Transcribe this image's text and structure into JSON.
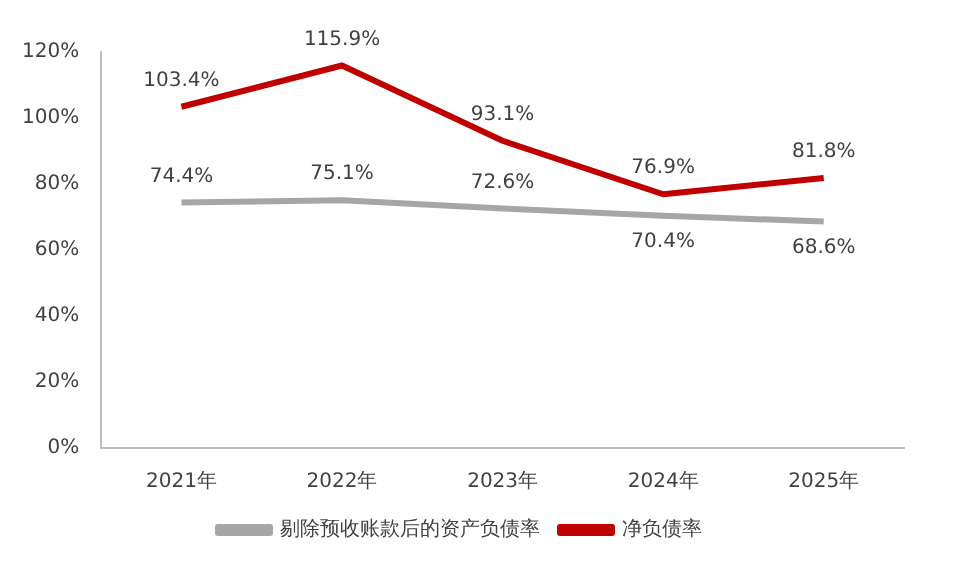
{
  "chart_data": {
    "type": "line",
    "categories": [
      "2021年",
      "2022年",
      "2023年",
      "2024年",
      "2025年"
    ],
    "series": [
      {
        "name": "剔除预收账款后的资产负债率",
        "color": "#a6a6a6",
        "values": [
          74.4,
          75.1,
          72.6,
          70.4,
          68.6
        ],
        "value_labels": [
          "74.4%",
          "75.1%",
          "72.6%",
          "70.4%",
          "68.6%"
        ]
      },
      {
        "name": "净负债率",
        "color": "#c00000",
        "values": [
          103.4,
          115.9,
          93.1,
          76.9,
          81.8
        ],
        "value_labels": [
          "103.4%",
          "115.9%",
          "93.1%",
          "76.9%",
          "81.8%"
        ]
      }
    ],
    "ylim": [
      0,
      120
    ],
    "yticks": [
      {
        "value": 0,
        "label": "0%"
      },
      {
        "value": 20,
        "label": "20%"
      },
      {
        "value": 40,
        "label": "40%"
      },
      {
        "value": 60,
        "label": "60%"
      },
      {
        "value": 80,
        "label": "80%"
      },
      {
        "value": 100,
        "label": "100%"
      },
      {
        "value": 120,
        "label": "120%"
      }
    ],
    "grid": false,
    "legend": "bottom",
    "marker": "none",
    "line_style": "solid"
  }
}
